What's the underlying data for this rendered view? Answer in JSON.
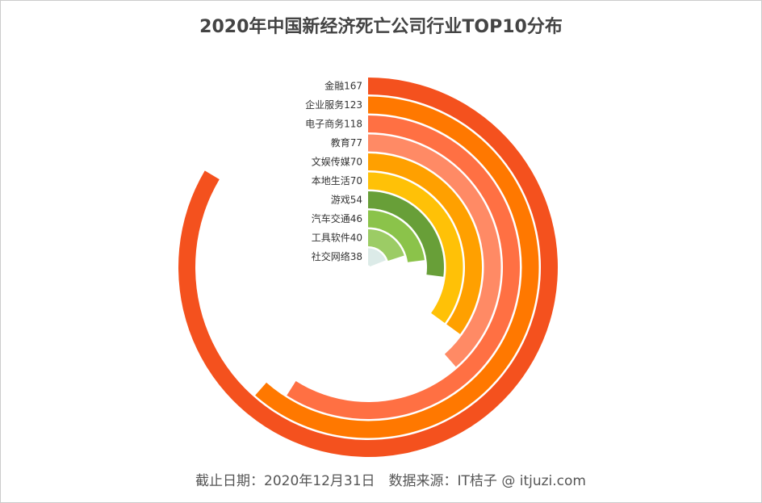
{
  "chart_data": {
    "type": "radial-bar",
    "title": "2020年中国新经济死亡公司行业TOP10分布",
    "note": "截止日期：2020年12月31日　数据来源：IT桔子 @ itjuzi.com",
    "categories": [
      "金融",
      "企业服务",
      "电子商务",
      "教育",
      "文娱传媒",
      "本地生活",
      "游戏",
      "汽车交通",
      "工具软件",
      "社交网络"
    ],
    "values": [
      167,
      123,
      118,
      77,
      70,
      70,
      54,
      46,
      40,
      38
    ],
    "colors": [
      "#f4511e",
      "#ff7800",
      "#ff7043",
      "#ff8a65",
      "#ffa000",
      "#ffc107",
      "#689f38",
      "#8bc34a",
      "#9ccc65",
      "#dcebe8"
    ],
    "ylim": [
      0,
      200
    ]
  }
}
